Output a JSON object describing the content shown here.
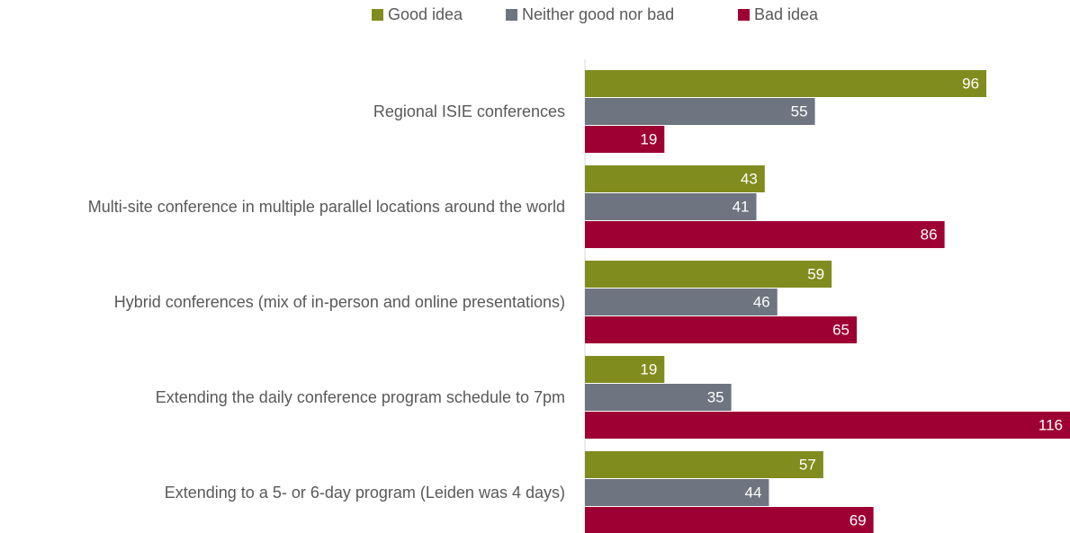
{
  "chart_data": {
    "type": "barh",
    "categories": [
      "Regional ISIE conferences",
      "Multi-site conference in multiple parallel locations around the world",
      "Hybrid conferences (mix of in-person and online presentations)",
      "Extending the daily conference program schedule to 7pm",
      "Extending to a 5- or 6-day program (Leiden was 4 days)"
    ],
    "series": [
      {
        "name": "Good idea",
        "color": "#818c1f",
        "values": [
          96,
          43,
          59,
          19,
          57
        ]
      },
      {
        "name": "Neither good nor bad",
        "color": "#6e7580",
        "values": [
          55,
          41,
          46,
          35,
          44
        ]
      },
      {
        "name": "Bad idea",
        "color": "#9e0034",
        "values": [
          19,
          86,
          65,
          116,
          69
        ]
      }
    ],
    "legend": "top"
  }
}
